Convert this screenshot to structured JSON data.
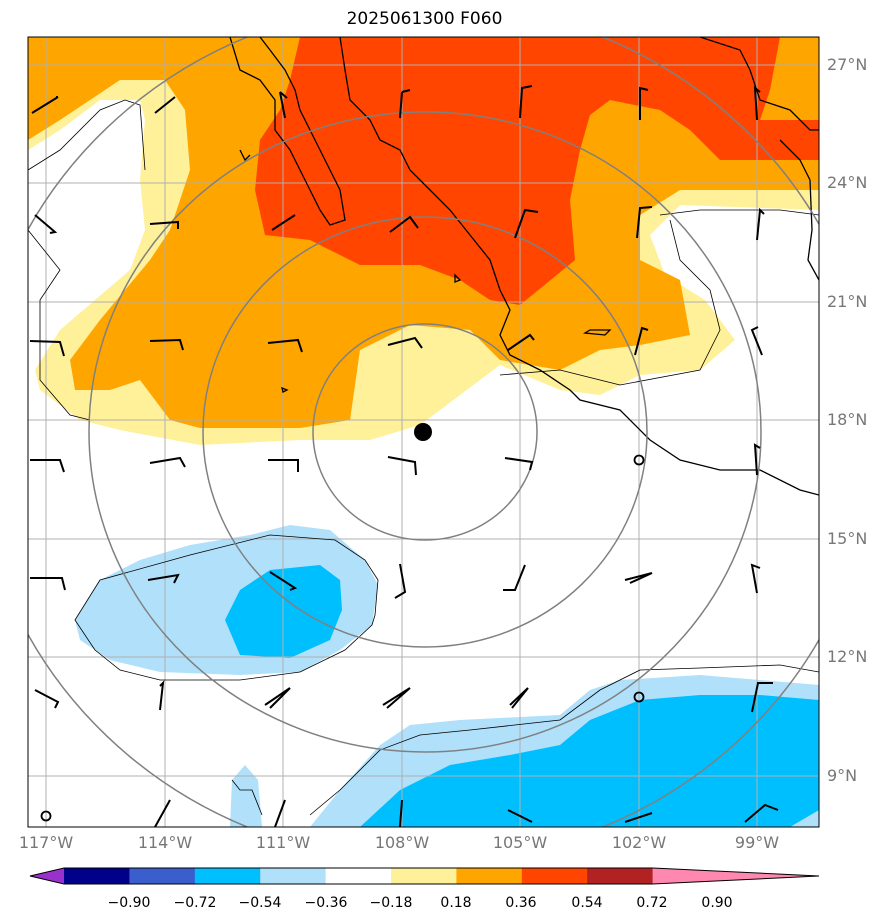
{
  "title": "2025061300 F060",
  "lat_labels": [
    "27°N",
    "24°N",
    "21°N",
    "18°N",
    "15°N",
    "12°N",
    "9°N"
  ],
  "lon_labels": [
    "117°W",
    "114°W",
    "111°W",
    "108°W",
    "105°W",
    "102°W",
    "99°W"
  ],
  "colorbar": {
    "tick_labels": [
      "−0.90",
      "−0.72",
      "−0.54",
      "−0.36",
      "−0.18",
      "0.18",
      "0.36",
      "0.54",
      "0.72",
      "0.90"
    ],
    "colors": [
      "#9932cc",
      "#00008b",
      "#3a5fcd",
      "#00bfff",
      "#b0e0fa",
      "#ffffff",
      "#fff09a",
      "#ffa500",
      "#ff4500",
      "#b22222",
      "#ff88b0"
    ]
  },
  "map": {
    "storm_center": {
      "lon": -107.5,
      "lat": 17.7
    },
    "grid": "on",
    "wind_barbs": "black",
    "coastline": "black",
    "range_rings": "gray"
  }
}
